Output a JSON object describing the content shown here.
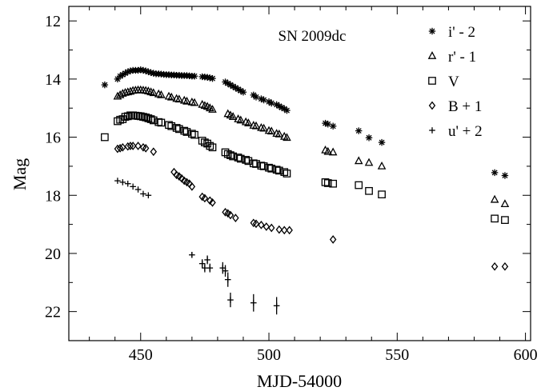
{
  "chart_data": {
    "type": "scatter",
    "title": "SN 2009dc",
    "xlabel": "MJD-54000",
    "ylabel": "Mag",
    "xlim": [
      422,
      602
    ],
    "ylim": [
      23,
      11.5
    ],
    "y_inverted": true,
    "grid": false,
    "legend_position": "top-right",
    "x_ticks": [
      450,
      500,
      550,
      600
    ],
    "y_ticks": [
      12,
      14,
      16,
      18,
      20,
      22
    ],
    "series": [
      {
        "name": "i' - 2",
        "marker": "asterisk",
        "x": [
          436,
          441,
          442,
          443,
          444,
          445,
          446,
          447,
          448,
          449,
          450,
          451,
          452,
          453,
          454,
          455,
          456,
          457,
          458,
          459,
          460,
          461,
          462,
          463,
          464,
          465,
          466,
          467,
          468,
          469,
          470,
          471,
          474,
          475,
          476,
          477,
          478,
          483,
          484,
          485,
          486,
          487,
          488,
          489,
          490,
          494,
          495,
          497,
          498,
          500,
          501,
          503,
          504,
          505,
          506,
          507,
          522,
          523,
          525,
          535,
          539,
          544,
          588,
          592
        ],
        "y": [
          14.2,
          14.0,
          13.9,
          13.85,
          13.8,
          13.75,
          13.72,
          13.7,
          13.7,
          13.7,
          13.68,
          13.7,
          13.72,
          13.75,
          13.78,
          13.8,
          13.82,
          13.82,
          13.83,
          13.84,
          13.85,
          13.85,
          13.86,
          13.86,
          13.87,
          13.87,
          13.88,
          13.88,
          13.88,
          13.89,
          13.9,
          13.9,
          13.92,
          13.93,
          13.94,
          13.96,
          13.98,
          14.1,
          14.15,
          14.2,
          14.25,
          14.3,
          14.35,
          14.4,
          14.45,
          14.55,
          14.62,
          14.68,
          14.72,
          14.78,
          14.83,
          14.88,
          14.93,
          14.98,
          15.02,
          15.08,
          15.52,
          15.55,
          15.62,
          15.78,
          16.02,
          16.18,
          17.22,
          17.32
        ]
      },
      {
        "name": "r' - 1",
        "marker": "triangle",
        "x": [
          441,
          442,
          443,
          444,
          445,
          446,
          447,
          448,
          449,
          450,
          451,
          452,
          453,
          454,
          455,
          457,
          458,
          461,
          462,
          464,
          465,
          467,
          468,
          470,
          471,
          474,
          475,
          476,
          477,
          478,
          484,
          485,
          486,
          488,
          489,
          491,
          492,
          494,
          495,
          497,
          498,
          500,
          501,
          503,
          504,
          506,
          507,
          522,
          523,
          525,
          535,
          539,
          544,
          588,
          592
        ],
        "y": [
          14.6,
          14.55,
          14.5,
          14.47,
          14.45,
          14.43,
          14.4,
          14.39,
          14.38,
          14.38,
          14.39,
          14.4,
          14.42,
          14.45,
          14.48,
          14.52,
          14.55,
          14.6,
          14.63,
          14.68,
          14.7,
          14.74,
          14.77,
          14.8,
          14.82,
          14.88,
          14.92,
          14.95,
          15.0,
          15.05,
          15.2,
          15.25,
          15.3,
          15.38,
          15.42,
          15.48,
          15.52,
          15.6,
          15.62,
          15.68,
          15.7,
          15.78,
          15.8,
          15.88,
          15.9,
          15.98,
          16.02,
          16.45,
          16.5,
          16.52,
          16.82,
          16.88,
          17.0,
          18.15,
          18.3
        ]
      },
      {
        "name": "V",
        "marker": "square",
        "x": [
          436,
          441,
          442,
          443,
          444,
          445,
          446,
          447,
          448,
          449,
          450,
          451,
          452,
          453,
          454,
          455,
          457,
          458,
          461,
          462,
          464,
          465,
          467,
          468,
          470,
          471,
          474,
          475,
          476,
          477,
          478,
          483,
          484,
          485,
          486,
          488,
          489,
          491,
          492,
          494,
          495,
          497,
          498,
          500,
          501,
          503,
          504,
          506,
          507,
          522,
          523,
          525,
          535,
          539,
          544,
          588,
          592
        ],
        "y": [
          16.0,
          15.45,
          15.4,
          15.38,
          15.3,
          15.28,
          15.25,
          15.25,
          15.26,
          15.27,
          15.28,
          15.3,
          15.32,
          15.35,
          15.38,
          15.42,
          15.48,
          15.5,
          15.58,
          15.62,
          15.68,
          15.72,
          15.78,
          15.82,
          15.88,
          15.92,
          16.12,
          16.18,
          16.22,
          16.3,
          16.35,
          16.52,
          16.58,
          16.62,
          16.66,
          16.7,
          16.74,
          16.78,
          16.82,
          16.9,
          16.92,
          16.98,
          17.0,
          17.05,
          17.08,
          17.12,
          17.15,
          17.2,
          17.25,
          17.55,
          17.58,
          17.6,
          17.65,
          17.85,
          17.97,
          18.8,
          18.85
        ]
      },
      {
        "name": "B + 1",
        "marker": "diamond",
        "x": [
          441,
          442,
          443,
          445,
          446,
          447,
          449,
          451,
          452,
          455,
          463,
          464,
          465,
          466,
          467,
          468,
          469,
          470,
          474,
          475,
          477,
          478,
          483,
          484,
          485,
          487,
          494,
          495,
          497,
          499,
          501,
          504,
          506,
          508,
          525,
          588,
          592
        ],
        "y": [
          16.4,
          16.38,
          16.35,
          16.32,
          16.3,
          16.3,
          16.3,
          16.35,
          16.38,
          16.5,
          17.2,
          17.3,
          17.35,
          17.42,
          17.5,
          17.55,
          17.6,
          17.7,
          18.05,
          18.1,
          18.18,
          18.25,
          18.58,
          18.62,
          18.68,
          18.78,
          18.95,
          18.98,
          19.02,
          19.08,
          19.12,
          19.18,
          19.2,
          19.2,
          19.52,
          20.45,
          20.45
        ]
      },
      {
        "name": "u' + 2",
        "marker": "plus",
        "x": [
          441,
          443,
          445,
          447,
          449,
          451,
          453,
          470,
          474,
          475,
          476,
          477,
          482,
          483,
          484,
          485,
          494,
          503
        ],
        "y": [
          17.5,
          17.55,
          17.6,
          17.7,
          17.8,
          17.95,
          18.0,
          20.05,
          20.35,
          20.5,
          20.22,
          20.5,
          20.5,
          20.6,
          20.9,
          21.6,
          21.7,
          21.8
        ],
        "y_err": [
          0,
          0,
          0,
          0,
          0,
          0,
          0,
          0.1,
          0.15,
          0.15,
          0.15,
          0.15,
          0.2,
          0.2,
          0.25,
          0.25,
          0.3,
          0.3
        ]
      }
    ]
  }
}
